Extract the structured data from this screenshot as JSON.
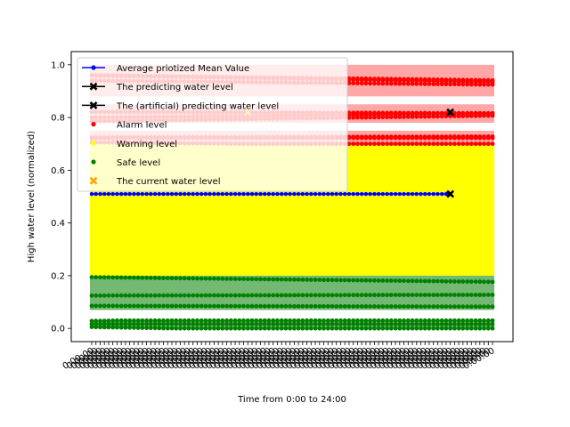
{
  "chart_data": {
    "type": "scatter",
    "title": "",
    "xlabel": "Time from 0:00 to 24:00",
    "ylabel": "High water level (normalized)",
    "ylim": [
      -0.05,
      1.05
    ],
    "yticks": [
      "0.0",
      "0.2",
      "0.4",
      "0.6",
      "0.8",
      "1.0"
    ],
    "xtick_count": 96,
    "xtick_label": "0:00:00",
    "grid": false,
    "legend_position": "upper-left",
    "colors": {
      "alarm": "#ff0000",
      "alarm_faded": "#ffc8c8",
      "warning": "#ffff00",
      "warning_faded": "#ffffc0",
      "safe": "#008000",
      "mean": "#0000ff",
      "predict": "#000000",
      "current": "#ffa500"
    },
    "series": [
      {
        "name": "Average priotized Mean Value",
        "marker": "line-dot",
        "color": "#0000ff",
        "x": [
          0,
          85
        ],
        "y": [
          0.51,
          0.51
        ]
      },
      {
        "name": "The predicting water level",
        "marker": "x-line",
        "color": "#000000",
        "x": [
          85
        ],
        "y": [
          0.51
        ]
      },
      {
        "name": "The (artificial) predicting water level",
        "marker": "x-line",
        "color": "#000000",
        "x": [
          85
        ],
        "y": [
          0.82
        ]
      },
      {
        "name": "Alarm level",
        "marker": "dot",
        "color": "#ff0000",
        "bands": [
          [
            0.7,
            0.75
          ],
          [
            0.78,
            0.85
          ],
          [
            0.88,
            1.0
          ]
        ]
      },
      {
        "name": "Warning level",
        "marker": "dot",
        "color": "#ffff00",
        "bands": [
          [
            0.2,
            0.7
          ]
        ]
      },
      {
        "name": "Safe level",
        "marker": "dot",
        "color": "#008000",
        "bands": [
          [
            0.0,
            0.03
          ],
          [
            0.07,
            0.2
          ]
        ]
      },
      {
        "name": "The current water level",
        "marker": "x",
        "color": "#ffa500",
        "x": [
          37
        ],
        "y": [
          0.82
        ]
      }
    ]
  }
}
